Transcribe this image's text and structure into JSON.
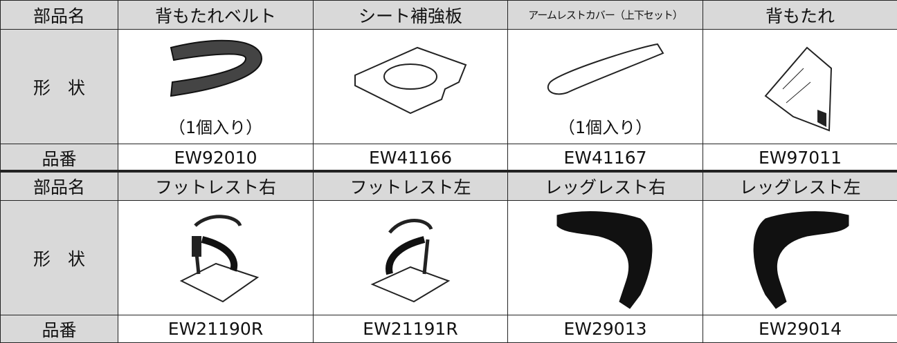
{
  "tables": [
    {
      "name_label": "部品名",
      "shape_label": "形　状",
      "number_label": "品番",
      "items": [
        {
          "name": "背もたれベルト",
          "note": "（1個入り）",
          "number": "EW92010"
        },
        {
          "name": "シート補強板",
          "number": "EW41166"
        },
        {
          "name": "アームレストカバー（上下セット）",
          "note": "（1個入り）",
          "number": "EW41167"
        },
        {
          "name": "背もたれ",
          "number": "EW97011"
        }
      ]
    },
    {
      "name_label": "部品名",
      "shape_label": "形　状",
      "number_label": "品番",
      "items": [
        {
          "name": "フットレスト右",
          "number": "EW21190R"
        },
        {
          "name": "フットレスト左",
          "number": "EW21191R"
        },
        {
          "name": "レッグレスト右",
          "number": "EW29013"
        },
        {
          "name": "レッグレスト左",
          "number": "EW29014"
        }
      ]
    }
  ]
}
